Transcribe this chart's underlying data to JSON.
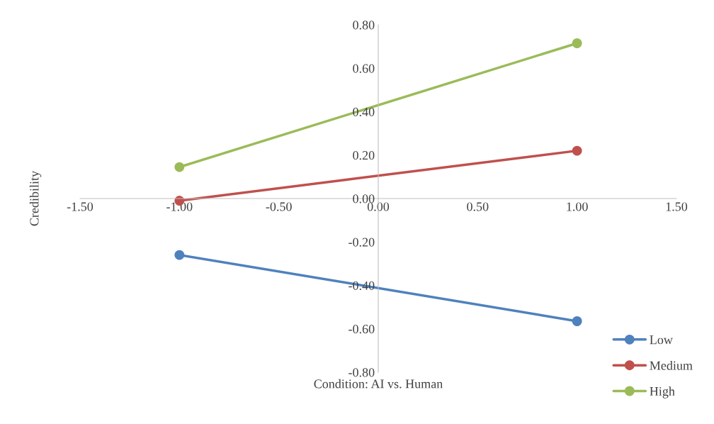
{
  "chart_data": {
    "type": "line",
    "xlabel": "Condition: AI vs. Human",
    "ylabel": "Credibility",
    "x": [
      -1,
      1
    ],
    "series": [
      {
        "name": "Low",
        "color": "#4f81bd",
        "values": [
          -0.26,
          -0.565
        ]
      },
      {
        "name": "Medium",
        "color": "#c0504d",
        "values": [
          -0.01,
          0.22
        ]
      },
      {
        "name": "High",
        "color": "#9bbb59",
        "values": [
          0.145,
          0.715
        ]
      }
    ],
    "xlim": [
      -1.5,
      1.5
    ],
    "ylim": [
      -0.8,
      0.8
    ],
    "xticks": [
      {
        "value": -1.5,
        "label": "-1.50"
      },
      {
        "value": -1,
        "label": "-1.00"
      },
      {
        "value": -0.5,
        "label": "-0.50"
      },
      {
        "value": 0,
        "label": "0.00"
      },
      {
        "value": 0.5,
        "label": "0.50"
      },
      {
        "value": 1,
        "label": "1.00"
      },
      {
        "value": 1.5,
        "label": "1.50"
      }
    ],
    "yticks": [
      {
        "value": -0.8,
        "label": "-0.80"
      },
      {
        "value": -0.6,
        "label": "-0.60"
      },
      {
        "value": -0.4,
        "label": "-0.40"
      },
      {
        "value": -0.2,
        "label": "-0.20"
      },
      {
        "value": 0,
        "label": "0.00"
      },
      {
        "value": 0.2,
        "label": "0.20"
      },
      {
        "value": 0.4,
        "label": "0.40"
      },
      {
        "value": 0.6,
        "label": "0.60"
      },
      {
        "value": 0.8,
        "label": "0.80"
      }
    ],
    "grid": false,
    "legend": "bottom right",
    "marker": "circle",
    "line_style": "solid"
  }
}
